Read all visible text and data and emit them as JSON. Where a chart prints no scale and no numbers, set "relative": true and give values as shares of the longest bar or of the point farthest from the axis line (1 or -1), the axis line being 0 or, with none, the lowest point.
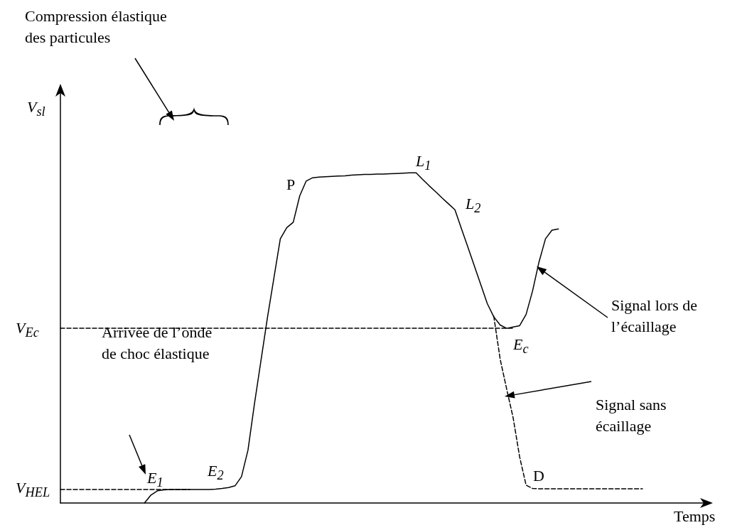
{
  "chart_data": {
    "type": "line",
    "relative": true,
    "xlabel": "Temps",
    "ylabel": "V$_{sl}$",
    "marker": "none",
    "categories": [
      null,
      null,
      null,
      null,
      null,
      null,
      null,
      null,
      null,
      null,
      null,
      null,
      null,
      null,
      null,
      null,
      null,
      null,
      null,
      null,
      null,
      null,
      null,
      null,
      null,
      null,
      null,
      null,
      null,
      null,
      null,
      null,
      null,
      null,
      null,
      null,
      null,
      null,
      null,
      null,
      null,
      null,
      null,
      null,
      null,
      null,
      null,
      null,
      null,
      null,
      null,
      null,
      null,
      null,
      null,
      null,
      null,
      null,
      null,
      null,
      null,
      null,
      null,
      null,
      null,
      null,
      null,
      null,
      null,
      null,
      null,
      null,
      null,
      null,
      null,
      null,
      null,
      null,
      null,
      null,
      null,
      null,
      null,
      null,
      null,
      null,
      null,
      null,
      null,
      null,
      null,
      null,
      null,
      null,
      null,
      null,
      null,
      null,
      null,
      null,
      null
    ],
    "series": [
      {
        "color": "#000000",
        "line_style": "solid",
        "values": [
          null,
          null,
          null,
          null,
          null,
          null,
          null,
          null,
          null,
          null,
          null,
          null,
          null,
          0,
          0.024,
          0.037,
          0.04,
          0.041,
          0.041,
          0.041,
          0.041,
          0.041,
          0.041,
          0.041,
          0.042,
          0.044,
          0.047,
          0.052,
          0.08,
          0.16,
          0.3,
          0.43,
          0.56,
          0.68,
          0.8,
          0.834,
          0.85,
          0.93,
          0.975,
          0.985,
          0.987,
          0.988,
          0.989,
          0.99,
          0.991,
          0.993,
          0.994,
          0.995,
          0.995,
          0.996,
          0.996,
          0.997,
          0.998,
          0.999,
          1,
          1,
          0.98,
          0.961,
          0.943,
          0.924,
          0.906,
          0.888,
          0.831,
          0.775,
          0.718,
          0.661,
          0.604,
          0.564,
          0.539,
          0.529,
          0.533,
          0.537,
          0.571,
          0.642,
          0.73,
          0.8,
          0.826,
          0.83,
          null,
          null,
          null,
          null,
          null,
          null,
          null,
          null,
          null,
          null,
          null,
          null,
          null,
          null,
          null,
          null,
          null,
          null,
          null,
          null,
          null,
          null,
          null
        ]
      },
      {
        "color": "#000000",
        "line_style": "dashed",
        "values": [
          null,
          null,
          null,
          null,
          null,
          null,
          null,
          null,
          null,
          null,
          null,
          null,
          null,
          null,
          null,
          null,
          null,
          null,
          null,
          null,
          null,
          null,
          null,
          null,
          null,
          null,
          null,
          null,
          null,
          null,
          null,
          null,
          null,
          null,
          null,
          null,
          null,
          null,
          null,
          null,
          null,
          null,
          null,
          null,
          null,
          null,
          null,
          null,
          null,
          null,
          null,
          null,
          null,
          null,
          null,
          null,
          null,
          null,
          null,
          null,
          null,
          null,
          null,
          null,
          null,
          null,
          null,
          0.566,
          0.435,
          0.345,
          0.258,
          0.14,
          0.054,
          0.044,
          0.043,
          0.043,
          0.043,
          0.043,
          0.043,
          0.043,
          0.043,
          0.043,
          0.043,
          0.043,
          0.043,
          0.043,
          0.043,
          0.043,
          0.043,
          0.043,
          0.043,
          null,
          null,
          null,
          null,
          null,
          null,
          null,
          null,
          null,
          null
        ]
      },
      {
        "color": "#000000",
        "line_style": "dashed",
        "values": [
          0.041,
          0.041,
          0.041,
          0.041,
          0.041,
          0.041,
          0.041,
          0.041,
          0.041,
          0.041,
          0.041,
          0.041,
          0.041,
          0.041,
          0.041,
          0.041,
          0.041,
          0.041,
          0.041,
          0.041,
          0.041,
          null,
          null,
          null,
          null,
          null,
          null,
          null,
          null,
          null,
          null,
          null,
          null,
          null,
          null,
          null,
          null,
          null,
          null,
          null,
          null,
          null,
          null,
          null,
          null,
          null,
          null,
          null,
          null,
          null,
          null,
          null,
          null,
          null,
          null,
          null,
          null,
          null,
          null,
          null,
          null,
          null,
          null,
          null,
          null,
          null,
          null,
          null,
          null,
          null,
          null,
          null,
          null,
          null,
          null,
          null,
          null,
          null,
          null,
          null,
          null,
          null,
          null,
          null,
          null,
          null,
          null,
          null,
          null,
          null,
          null,
          null,
          null,
          null,
          null,
          null,
          null,
          null,
          null,
          null,
          null
        ]
      },
      {
        "color": "#000000",
        "line_style": "dashed",
        "values": [
          0.529,
          0.529,
          0.529,
          0.529,
          0.529,
          0.529,
          0.529,
          0.529,
          0.529,
          0.529,
          0.529,
          0.529,
          0.529,
          0.529,
          0.529,
          0.529,
          0.529,
          0.529,
          0.529,
          0.529,
          0.529,
          0.529,
          0.529,
          0.529,
          0.529,
          0.529,
          0.529,
          0.529,
          0.529,
          0.529,
          0.529,
          0.529,
          0.529,
          0.529,
          0.529,
          0.529,
          0.529,
          0.529,
          0.529,
          0.529,
          0.529,
          0.529,
          0.529,
          0.529,
          0.529,
          0.529,
          0.529,
          0.529,
          0.529,
          0.529,
          0.529,
          0.529,
          0.529,
          0.529,
          0.529,
          0.529,
          0.529,
          0.529,
          0.529,
          0.529,
          0.529,
          0.529,
          0.529,
          0.529,
          0.529,
          0.529,
          0.529,
          0.529,
          0.529,
          0.529,
          0.529,
          null,
          null,
          null,
          null,
          null,
          null,
          null,
          null,
          null,
          null,
          null,
          null,
          null,
          null,
          null,
          null,
          null,
          null,
          null,
          null,
          null,
          null,
          null,
          null,
          null,
          null,
          null,
          null,
          null,
          null
        ]
      }
    ],
    "annotations": [
      "V$_{HEL}$",
      "V$_{Ec}$",
      "E$_{1}$",
      "E$_{2}$",
      "P",
      "L$_{1}$",
      "L$_{2}$",
      "E$_{c}$",
      "D",
      "Compression élastique des particules",
      "Arrivée de l’onde de choc élastique",
      "Signal lors de l’écaillage",
      "Signal sans écaillage"
    ]
  }
}
